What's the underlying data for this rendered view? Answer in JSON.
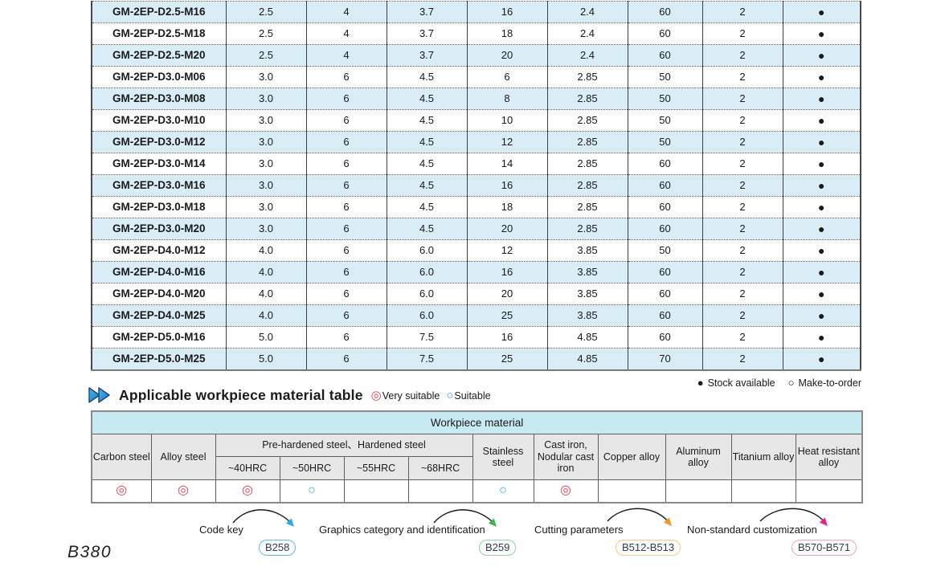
{
  "theme": {
    "stripe_blue": "#d9edf7",
    "header_cyan": "#c7e9f1",
    "header_gray": "#e7e7e7",
    "very_suitable_red": "#e8414d",
    "suitable_cyan": "#29abe2",
    "chevron_dark_blue": "#14477e",
    "chevron_blue": "#1b75bc",
    "chevron_light_blue": "#4db8ea"
  },
  "symbols": {
    "very_suitable": "◎",
    "suitable": "○",
    "stock_available": "●",
    "make_to_order": "○",
    "section_chevron": "double-right-chevron"
  },
  "main_table": {
    "rows": [
      {
        "model": "GM-2EP-D2.5-M16",
        "values": [
          "2.5",
          "4",
          "3.7",
          "16",
          "2.4",
          "60",
          "2"
        ],
        "stock": "available"
      },
      {
        "model": "GM-2EP-D2.5-M18",
        "values": [
          "2.5",
          "4",
          "3.7",
          "18",
          "2.4",
          "60",
          "2"
        ],
        "stock": "available"
      },
      {
        "model": "GM-2EP-D2.5-M20",
        "values": [
          "2.5",
          "4",
          "3.7",
          "20",
          "2.4",
          "60",
          "2"
        ],
        "stock": "available"
      },
      {
        "model": "GM-2EP-D3.0-M06",
        "values": [
          "3.0",
          "6",
          "4.5",
          "6",
          "2.85",
          "50",
          "2"
        ],
        "stock": "available"
      },
      {
        "model": "GM-2EP-D3.0-M08",
        "values": [
          "3.0",
          "6",
          "4.5",
          "8",
          "2.85",
          "50",
          "2"
        ],
        "stock": "available"
      },
      {
        "model": "GM-2EP-D3.0-M10",
        "values": [
          "3.0",
          "6",
          "4.5",
          "10",
          "2.85",
          "50",
          "2"
        ],
        "stock": "available"
      },
      {
        "model": "GM-2EP-D3.0-M12",
        "values": [
          "3.0",
          "6",
          "4.5",
          "12",
          "2.85",
          "50",
          "2"
        ],
        "stock": "available"
      },
      {
        "model": "GM-2EP-D3.0-M14",
        "values": [
          "3.0",
          "6",
          "4.5",
          "14",
          "2.85",
          "60",
          "2"
        ],
        "stock": "available"
      },
      {
        "model": "GM-2EP-D3.0-M16",
        "values": [
          "3.0",
          "6",
          "4.5",
          "16",
          "2.85",
          "60",
          "2"
        ],
        "stock": "available"
      },
      {
        "model": "GM-2EP-D3.0-M18",
        "values": [
          "3.0",
          "6",
          "4.5",
          "18",
          "2.85",
          "60",
          "2"
        ],
        "stock": "available"
      },
      {
        "model": "GM-2EP-D3.0-M20",
        "values": [
          "3.0",
          "6",
          "4.5",
          "20",
          "2.85",
          "60",
          "2"
        ],
        "stock": "available"
      },
      {
        "model": "GM-2EP-D4.0-M12",
        "values": [
          "4.0",
          "6",
          "6.0",
          "12",
          "3.85",
          "50",
          "2"
        ],
        "stock": "available"
      },
      {
        "model": "GM-2EP-D4.0-M16",
        "values": [
          "4.0",
          "6",
          "6.0",
          "16",
          "3.85",
          "60",
          "2"
        ],
        "stock": "available"
      },
      {
        "model": "GM-2EP-D4.0-M20",
        "values": [
          "4.0",
          "6",
          "6.0",
          "20",
          "3.85",
          "60",
          "2"
        ],
        "stock": "available"
      },
      {
        "model": "GM-2EP-D4.0-M25",
        "values": [
          "4.0",
          "6",
          "6.0",
          "25",
          "3.85",
          "60",
          "2"
        ],
        "stock": "available"
      },
      {
        "model": "GM-2EP-D5.0-M16",
        "values": [
          "5.0",
          "6",
          "7.5",
          "16",
          "4.85",
          "60",
          "2"
        ],
        "stock": "available"
      },
      {
        "model": "GM-2EP-D5.0-M25",
        "values": [
          "5.0",
          "6",
          "7.5",
          "25",
          "4.85",
          "70",
          "2"
        ],
        "stock": "available"
      }
    ]
  },
  "stock_legend": {
    "available_label": "Stock available",
    "make_to_order_label": "Make-to-order"
  },
  "section": {
    "title": "Applicable workpiece material table",
    "legend": [
      {
        "symbol": "◎",
        "label": "Very suitable",
        "color": "#e8414d"
      },
      {
        "symbol": "○",
        "label": "Suitable",
        "color": "#29abe2"
      }
    ]
  },
  "material_table": {
    "header": "Workpiece material",
    "columns": [
      {
        "label": "Carbon steel"
      },
      {
        "label": "Alloy steel"
      },
      {
        "group": "Pre-hardened steel、Hardened steel",
        "sub": [
          "~40HRC",
          "~50HRC",
          "~55HRC",
          "~68HRC"
        ]
      },
      {
        "label": "Stainless steel"
      },
      {
        "label": "Cast iron, Nodular cast iron"
      },
      {
        "label": "Copper alloy"
      },
      {
        "label": "Aluminum alloy"
      },
      {
        "label": "Titanium alloy"
      },
      {
        "label": "Heat resistant alloy"
      }
    ],
    "ratings": [
      "very-suitable",
      "very-suitable",
      "very-suitable",
      "suitable",
      "",
      "",
      "suitable",
      "very-suitable",
      "",
      "",
      "",
      ""
    ]
  },
  "footer": {
    "refs": [
      {
        "label": "Code key",
        "badge": "B258",
        "badge_border": "#55c0ea",
        "arrow_color": "#29abe2"
      },
      {
        "label": "Graphics category and identification",
        "badge": "B259",
        "badge_border": "#8fd3a2",
        "arrow_color": "#3cb54a"
      },
      {
        "label": "Cutting parameters",
        "badge": "B512-B513",
        "badge_border": "#f9c97e",
        "arrow_color": "#f7941d"
      },
      {
        "label": "Non-standard customization",
        "badge": "B570-B571",
        "badge_border": "#f59ec4",
        "arrow_color": "#ec1e8c"
      }
    ]
  },
  "page": {
    "number": "B380"
  }
}
